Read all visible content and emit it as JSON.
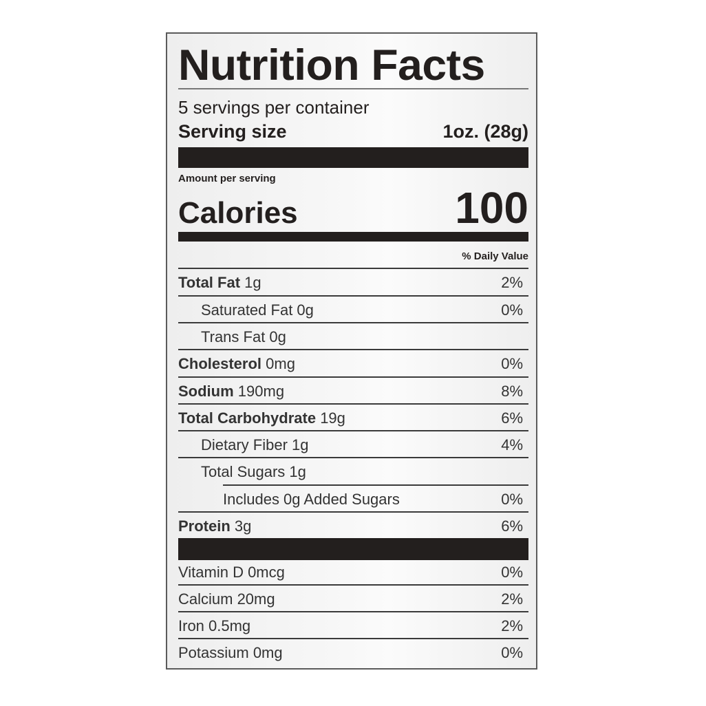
{
  "title": "Nutrition Facts",
  "servings_per_container": "5 servings per container",
  "serving_size_label": "Serving size",
  "serving_size_value": "1oz. (28g)",
  "amount_per_serving": "Amount per serving",
  "calories_label": "Calories",
  "calories_value": "100",
  "daily_value_header": "% Daily Value",
  "nutrients": [
    {
      "name": "Total Fat",
      "amount": "1g",
      "dv": "2%"
    },
    {
      "name": "Saturated Fat 0g",
      "amount": "",
      "dv": "0%"
    },
    {
      "name": "Trans Fat 0g",
      "amount": "",
      "dv": ""
    },
    {
      "name": "Cholesterol",
      "amount": "0mg",
      "dv": "0%"
    },
    {
      "name": "Sodium",
      "amount": "190mg",
      "dv": "8%"
    },
    {
      "name": "Total Carbohydrate",
      "amount": "19g",
      "dv": "6%"
    },
    {
      "name": "Dietary Fiber 1g",
      "amount": "",
      "dv": "4%"
    },
    {
      "name": "Total Sugars 1g",
      "amount": "",
      "dv": ""
    },
    {
      "name": "Includes 0g Added Sugars",
      "amount": "",
      "dv": "0%"
    },
    {
      "name": "Protein",
      "amount": "3g",
      "dv": "6%"
    }
  ],
  "vitamins": [
    {
      "name": "Vitamin D 0mcg",
      "dv": "0%"
    },
    {
      "name": "Calcium 20mg",
      "dv": "2%"
    },
    {
      "name": "Iron 0.5mg",
      "dv": "2%"
    },
    {
      "name": "Potassium 0mg",
      "dv": "0%"
    }
  ]
}
